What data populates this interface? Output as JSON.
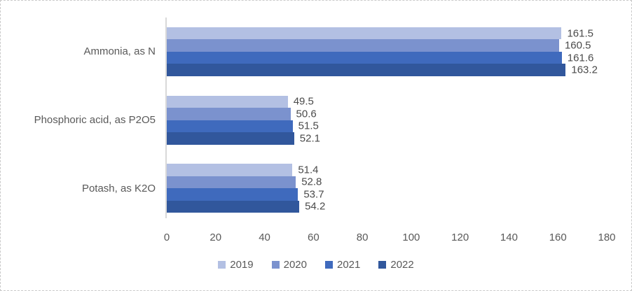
{
  "chart_data": {
    "type": "bar",
    "orientation": "horizontal",
    "categories": [
      "Ammonia, as N",
      "Phosphoric acid, as P2O5",
      "Potash, as K2O"
    ],
    "series": [
      {
        "name": "2019",
        "color": "#b3c0e3",
        "values": [
          161.5,
          49.5,
          51.4
        ]
      },
      {
        "name": "2020",
        "color": "#7b92ce",
        "values": [
          160.5,
          50.6,
          52.8
        ]
      },
      {
        "name": "2021",
        "color": "#3f6abd",
        "values": [
          161.6,
          51.5,
          53.7
        ]
      },
      {
        "name": "2022",
        "color": "#31579c",
        "values": [
          163.2,
          52.1,
          54.2
        ]
      }
    ],
    "xlim": [
      0,
      180
    ],
    "x_ticks": [
      0,
      20,
      40,
      60,
      80,
      100,
      120,
      140,
      160,
      180
    ],
    "grid": false,
    "legend_position": "bottom",
    "value_labels": true,
    "value_label_decimals": 1
  },
  "ui_colors": {
    "background": "#ffffff",
    "border": "#c9c9c9",
    "axis_line": "#d9d9d9",
    "text": "#595959",
    "data_label_text": "#4a4a4a"
  }
}
